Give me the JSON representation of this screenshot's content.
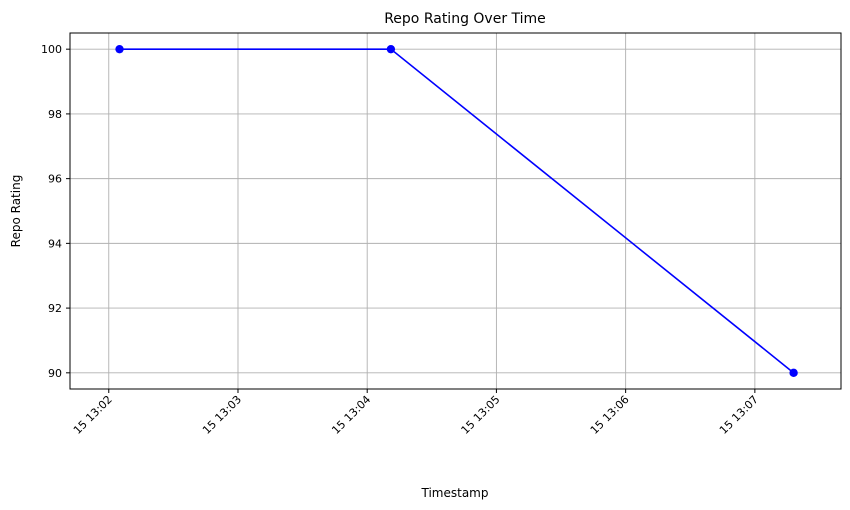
{
  "chart_data": {
    "type": "line",
    "title": "Repo Rating Over Time",
    "xlabel": "Timestamp",
    "ylabel": "Repo Rating",
    "x": [
      "13:02:05",
      "13:04:11",
      "13:07:18"
    ],
    "series": [
      {
        "values": [
          100,
          100,
          90
        ],
        "color": "#0000ff",
        "marker": "circle"
      }
    ],
    "xlim": [
      "13:01:42",
      "13:07:40"
    ],
    "ylim": [
      89.5,
      100.5
    ],
    "x_ticks": [
      "15 13:02",
      "15 13:03",
      "15 13:04",
      "15 13:05",
      "15 13:06",
      "15 13:07"
    ],
    "y_ticks": [
      90,
      92,
      94,
      96,
      98,
      100
    ],
    "grid": true,
    "x_tick_rotation_deg": 45
  }
}
